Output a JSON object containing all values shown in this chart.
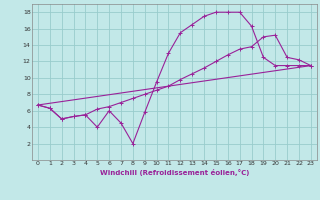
{
  "xlabel": "Windchill (Refroidissement éolien,°C)",
  "bg_color": "#c2e8e8",
  "line_color": "#992299",
  "grid_color": "#99cccc",
  "xlim": [
    -0.5,
    23.5
  ],
  "ylim": [
    0,
    19
  ],
  "yticks": [
    2,
    4,
    6,
    8,
    10,
    12,
    14,
    16,
    18
  ],
  "xticks": [
    0,
    1,
    2,
    3,
    4,
    5,
    6,
    7,
    8,
    9,
    10,
    11,
    12,
    13,
    14,
    15,
    16,
    17,
    18,
    19,
    20,
    21,
    22,
    23
  ],
  "curve1_x": [
    0,
    1,
    2,
    3,
    4,
    5,
    6,
    7,
    8,
    9,
    10,
    11,
    12,
    13,
    14,
    15,
    16,
    17,
    18,
    19,
    20,
    21,
    22,
    23
  ],
  "curve1_y": [
    6.7,
    6.3,
    5.0,
    5.3,
    5.5,
    4.0,
    6.0,
    4.5,
    2.0,
    5.8,
    9.5,
    13.0,
    15.5,
    16.5,
    17.5,
    18.0,
    18.0,
    18.0,
    16.3,
    12.5,
    11.5,
    11.5,
    11.5,
    11.5
  ],
  "curve2_x": [
    0,
    1,
    2,
    3,
    4,
    5,
    6,
    7,
    8,
    9,
    10,
    11,
    12,
    13,
    14,
    15,
    16,
    17,
    18,
    19,
    20,
    21,
    22,
    23
  ],
  "curve2_y": [
    6.7,
    6.3,
    5.0,
    5.3,
    5.5,
    6.2,
    6.5,
    7.0,
    7.5,
    8.0,
    8.5,
    9.0,
    9.8,
    10.5,
    11.2,
    12.0,
    12.8,
    13.5,
    13.8,
    15.0,
    15.2,
    12.5,
    12.2,
    11.5
  ],
  "curve3_x": [
    0,
    23
  ],
  "curve3_y": [
    6.7,
    11.5
  ]
}
